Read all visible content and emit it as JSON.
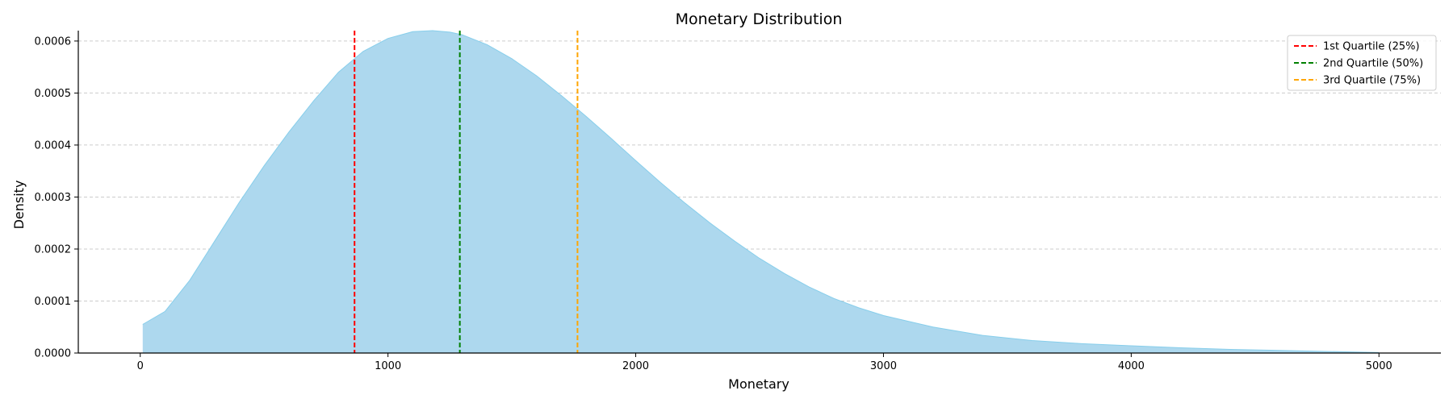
{
  "chart_data": {
    "type": "area",
    "title": "Monetary Distribution",
    "xlabel": "Monetary",
    "ylabel": "Density",
    "xlim": [
      -250,
      5250
    ],
    "ylim": [
      0,
      0.00062
    ],
    "grid": "y-dashed",
    "legend_position": "top-right",
    "x_ticks": [
      0,
      1000,
      2000,
      3000,
      4000,
      5000
    ],
    "x_tick_labels": [
      "0",
      "1000",
      "2000",
      "3000",
      "4000",
      "5000"
    ],
    "y_ticks": [
      0,
      0.0001,
      0.0002,
      0.0003,
      0.0004,
      0.0005,
      0.0006
    ],
    "y_tick_labels": [
      "0.0000",
      "0.0001",
      "0.0002",
      "0.0003",
      "0.0004",
      "0.0005",
      "0.0006"
    ],
    "series": [
      {
        "fill_color": "#add8ee",
        "line_color": "#87ceeb",
        "x": [
          10,
          100,
          200,
          300,
          400,
          500,
          600,
          700,
          800,
          900,
          1000,
          1100,
          1180,
          1250,
          1300,
          1400,
          1500,
          1600,
          1700,
          1800,
          1900,
          2000,
          2100,
          2200,
          2300,
          2400,
          2500,
          2600,
          2700,
          2800,
          2900,
          3000,
          3200,
          3400,
          3600,
          3800,
          4000,
          4200,
          4400,
          4600,
          4800,
          5000
        ],
        "y": [
          5.5e-05,
          8e-05,
          0.00014,
          0.000215,
          0.00029,
          0.00036,
          0.000425,
          0.000485,
          0.00054,
          0.00058,
          0.000605,
          0.000618,
          0.00062,
          0.000617,
          0.000612,
          0.000593,
          0.000566,
          0.000533,
          0.000495,
          0.000455,
          0.000413,
          0.00037,
          0.000328,
          0.000288,
          0.00025,
          0.000215,
          0.000182,
          0.000153,
          0.000127,
          0.000105,
          8.7e-05,
          7.2e-05,
          5e-05,
          3.4e-05,
          2.4e-05,
          1.8e-05,
          1.4e-05,
          1e-05,
          7e-06,
          5e-06,
          3e-06,
          1e-06
        ]
      }
    ],
    "reference_lines": [
      {
        "name": "1st Quartile (25%)",
        "x": 865,
        "color": "#ff0000"
      },
      {
        "name": "2nd Quartile (50%)",
        "x": 1290,
        "color": "#008000"
      },
      {
        "name": "3rd Quartile (75%)",
        "x": 1765,
        "color": "#ffa500"
      }
    ]
  }
}
